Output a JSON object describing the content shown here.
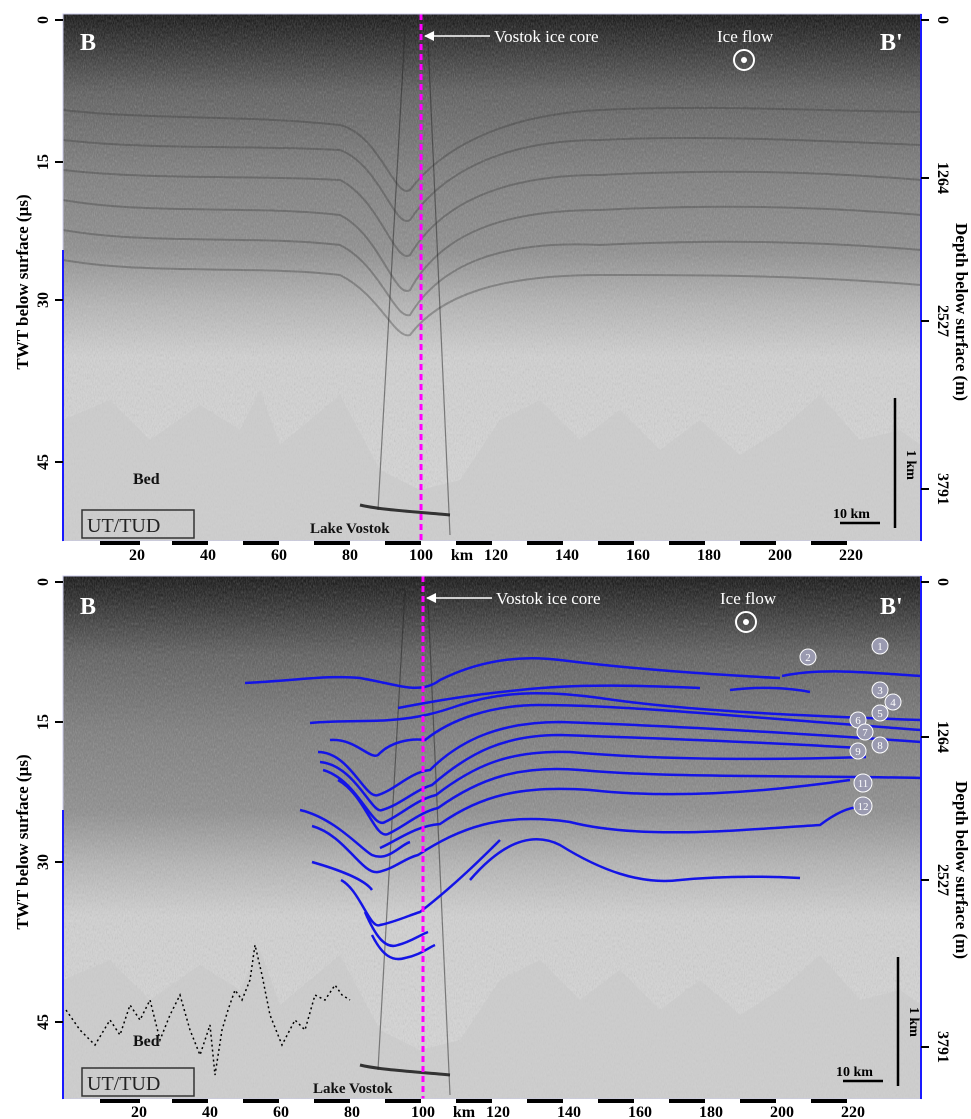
{
  "left_axis_label": "TWT below surface (µs)",
  "right_axis_label": "Depth below surface (m)",
  "left_ticks": [
    "0",
    "15",
    "30",
    "45"
  ],
  "right_ticks": [
    "0",
    "1264",
    "2527",
    "3791"
  ],
  "x_ticks": [
    "20",
    "40",
    "60",
    "80",
    "100",
    "km",
    "120",
    "140",
    "160",
    "180",
    "200",
    "220"
  ],
  "panels": [
    {
      "corner_left": "B",
      "corner_right": "B'",
      "core_label": "Vostok ice core",
      "ice_flow_label": "Ice flow",
      "bed_label": "Bed",
      "lake_label": "Lake Vostok",
      "credit": "UT/TUD",
      "scale_h_label": "10 km",
      "scale_v_label": "1 km"
    },
    {
      "corner_left": "B",
      "corner_right": "B'",
      "core_label": "Vostok ice core",
      "ice_flow_label": "Ice flow",
      "bed_label": "Bed",
      "lake_label": "Lake Vostok",
      "credit": "UT/TUD",
      "scale_h_label": "10 km",
      "scale_v_label": "1 km",
      "layer_numbers": [
        "1",
        "2",
        "3",
        "4",
        "5",
        "6",
        "7",
        "8",
        "9",
        "11",
        "12"
      ]
    }
  ],
  "colors": {
    "core_line": "#ff00ff",
    "traced_layers": "#1414e6",
    "axis_blue": "#1a1aff",
    "label_white": "#ffffff"
  }
}
